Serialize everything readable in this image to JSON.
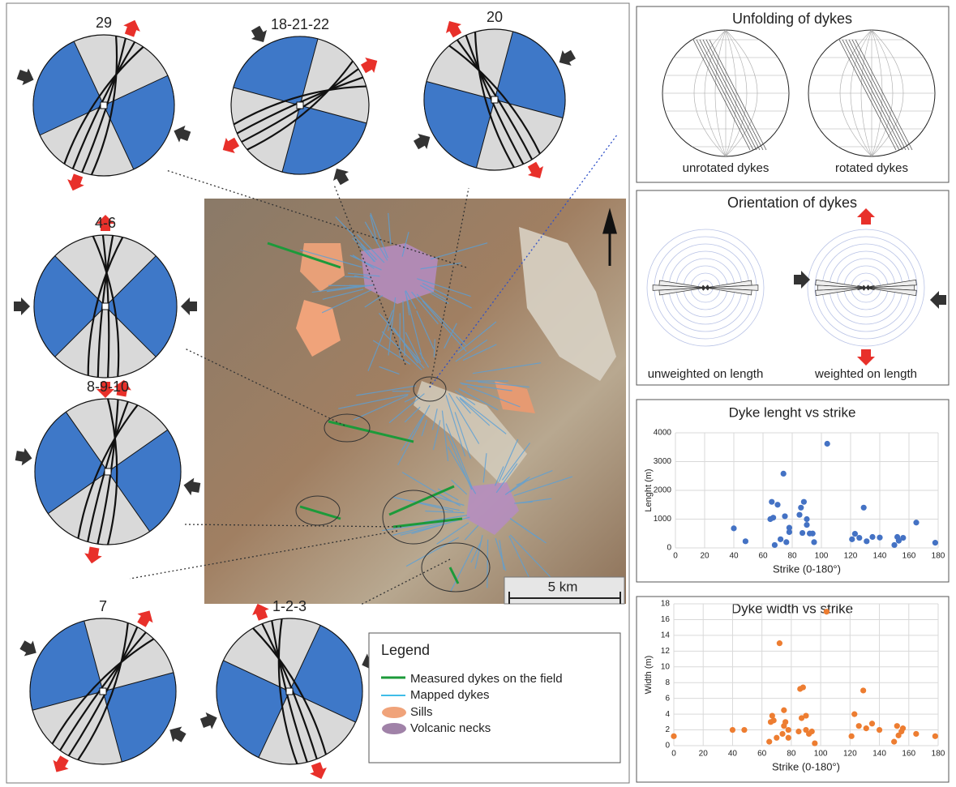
{
  "stereonets": [
    "29",
    "18-21-22",
    "20",
    "4-6",
    "8-9-10",
    "7",
    "1-2-3"
  ],
  "panels": {
    "unfolding": {
      "title": "Unfolding of dykes",
      "left": "unrotated dykes",
      "right": "rotated dykes"
    },
    "orientation": {
      "title": "Orientation of dykes",
      "left": "unweighted on length",
      "right": "weighted on length"
    }
  },
  "map": {
    "scale": "5 km"
  },
  "legend": {
    "title": "Legend",
    "items": [
      "Measured dykes on the field",
      "Mapped dykes",
      "Sills",
      "Volcanic necks"
    ]
  },
  "chart_data": [
    {
      "type": "scatter",
      "title": "Dyke lenght vs strike",
      "x_label": "Strike (0-180°)",
      "y_label": "Lenght (m)",
      "color": "#4472c4",
      "grid": true,
      "x": [
        40,
        48,
        65,
        66,
        67,
        68,
        70,
        72,
        74,
        75,
        76,
        78,
        78,
        85,
        86,
        88,
        87,
        90,
        90,
        92,
        94,
        95,
        104,
        121,
        123,
        126,
        129,
        131,
        135,
        140,
        150,
        152,
        153,
        156,
        165,
        178
      ],
      "values": [
        680,
        230,
        1000,
        1600,
        1050,
        100,
        1500,
        300,
        2580,
        1100,
        200,
        700,
        550,
        1150,
        1400,
        1600,
        520,
        800,
        1000,
        500,
        500,
        200,
        3620,
        300,
        490,
        350,
        1400,
        230,
        380,
        360,
        100,
        380,
        250,
        350,
        880,
        180
      ],
      "xlim": [
        0,
        180
      ],
      "xticks": [
        0,
        20,
        40,
        60,
        80,
        100,
        120,
        140,
        160,
        180
      ],
      "ylim": [
        0,
        4000
      ],
      "yticks": [
        0,
        1000,
        2000,
        3000,
        4000
      ]
    },
    {
      "type": "scatter",
      "title": "Dyke width vs strike",
      "x_label": "Strike (0-180°)",
      "y_label": "Width (m)",
      "color": "#ed7d31",
      "grid": true,
      "x": [
        0,
        40,
        48,
        65,
        66,
        67,
        68,
        70,
        72,
        74,
        75,
        75,
        76,
        78,
        78,
        85,
        86,
        88,
        87,
        90,
        90,
        92,
        94,
        96,
        104,
        121,
        123,
        126,
        129,
        131,
        135,
        140,
        150,
        152,
        153,
        155,
        156,
        165,
        178
      ],
      "values": [
        1.2,
        2,
        2,
        0.5,
        3,
        3.8,
        3.2,
        1,
        13,
        1.5,
        4.5,
        2.5,
        3,
        2,
        1,
        1.8,
        7.2,
        7.4,
        3.5,
        3.8,
        2,
        1.5,
        1.8,
        0.3,
        17,
        1.2,
        4,
        2.5,
        7,
        2.2,
        2.8,
        2,
        0.5,
        2.5,
        1.3,
        1.8,
        2.2,
        1.5,
        1.2
      ],
      "xlim": [
        0,
        180
      ],
      "xticks": [
        0,
        20,
        40,
        60,
        80,
        100,
        120,
        140,
        160,
        180
      ],
      "ylim": [
        0,
        18
      ],
      "yticks": [
        0,
        2,
        4,
        6,
        8,
        10,
        12,
        14,
        16,
        18
      ]
    }
  ]
}
